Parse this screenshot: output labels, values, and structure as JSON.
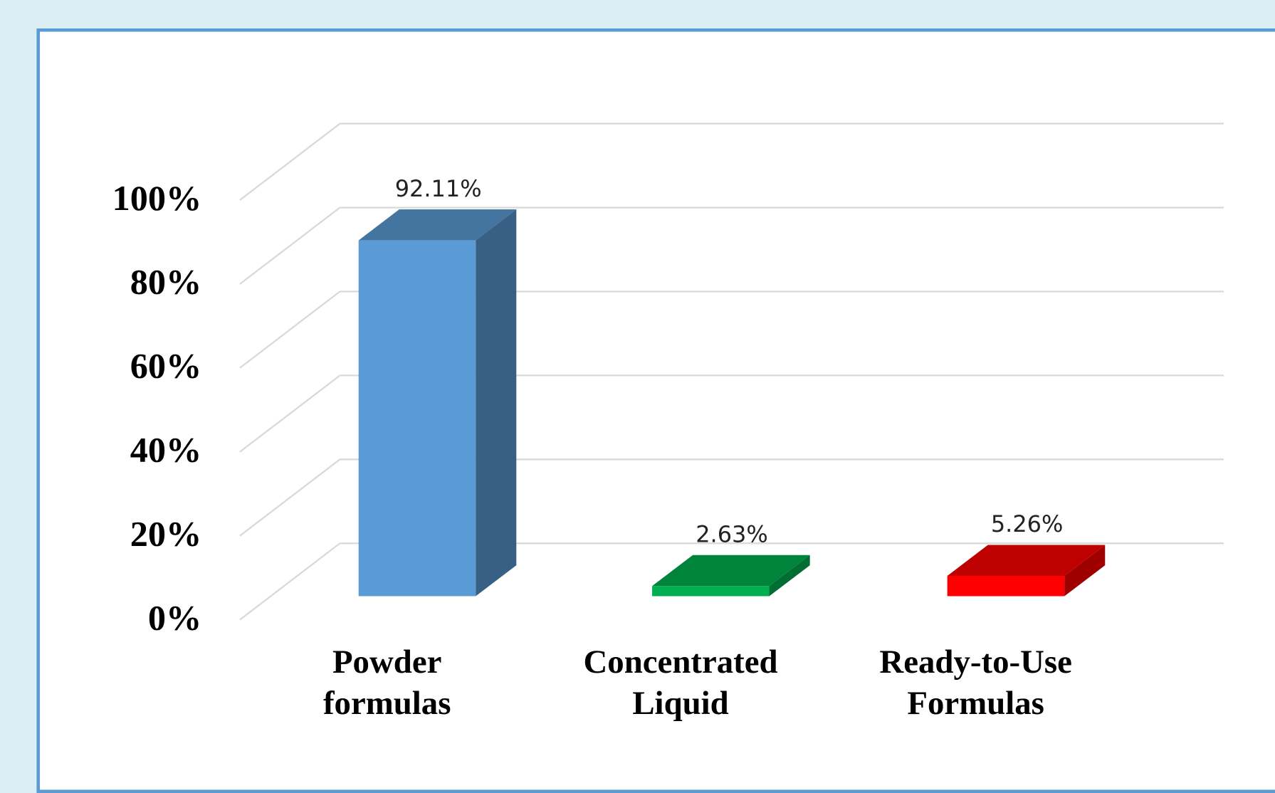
{
  "chart_data": {
    "type": "bar3d",
    "categories": [
      "Powder formulas",
      "Concentrated Liquid",
      "Ready-to-Use Formulas"
    ],
    "values": [
      92.11,
      2.63,
      5.26
    ],
    "value_labels": [
      "92.11%",
      "2.63%",
      "5.26%"
    ],
    "colors": [
      "#5b9bd5",
      "#00b050",
      "#ff0000"
    ],
    "ylim": [
      0,
      100
    ],
    "yticks": [
      {
        "value": 0,
        "label": "0%"
      },
      {
        "value": 20,
        "label": "20%"
      },
      {
        "value": 40,
        "label": "40%"
      },
      {
        "value": 60,
        "label": "60%"
      },
      {
        "value": 80,
        "label": "80%"
      },
      {
        "value": 100,
        "label": "100%"
      }
    ],
    "grid": true
  }
}
